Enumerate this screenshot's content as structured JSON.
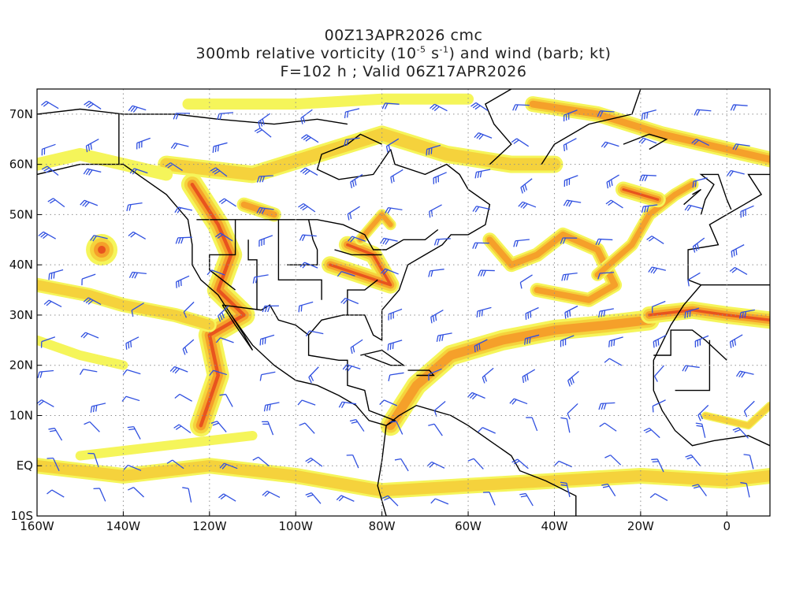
{
  "title": {
    "line1": "00Z13APR2026 cmc",
    "line2_pre": "300mb relative vorticity (10",
    "line2_exp1": "-5",
    "line2_mid": " s",
    "line2_exp2": "-1",
    "line2_post": ") and wind (barb; kt)",
    "line3": "F=102 h ; Valid 06Z17APR2026"
  },
  "axes": {
    "lon_ticks": [
      {
        "label": "160W",
        "lon": -160
      },
      {
        "label": "140W",
        "lon": -140
      },
      {
        "label": "120W",
        "lon": -120
      },
      {
        "label": "100W",
        "lon": -100
      },
      {
        "label": "80W",
        "lon": -80
      },
      {
        "label": "60W",
        "lon": -60
      },
      {
        "label": "40W",
        "lon": -40
      },
      {
        "label": "20W",
        "lon": -20
      },
      {
        "label": "0",
        "lon": 0
      }
    ],
    "lat_ticks": [
      {
        "label": "70N",
        "lat": 70
      },
      {
        "label": "60N",
        "lat": 60
      },
      {
        "label": "50N",
        "lat": 50
      },
      {
        "label": "40N",
        "lat": 40
      },
      {
        "label": "30N",
        "lat": 30
      },
      {
        "label": "20N",
        "lat": 20
      },
      {
        "label": "10N",
        "lat": 10
      },
      {
        "label": "EQ",
        "lat": 0
      },
      {
        "label": "10S",
        "lat": -10
      }
    ],
    "lon_range": [
      -160,
      10
    ],
    "lat_range": [
      -10,
      75
    ],
    "grid": "dotted"
  },
  "colors": {
    "vort_low": "#f5f55a",
    "vort_mid": "#f5d23c",
    "vort_high": "#f5a02a",
    "vort_max": "#e8541e",
    "barb": "#3050e0",
    "coast": "#000000",
    "grid": "#909090"
  }
}
